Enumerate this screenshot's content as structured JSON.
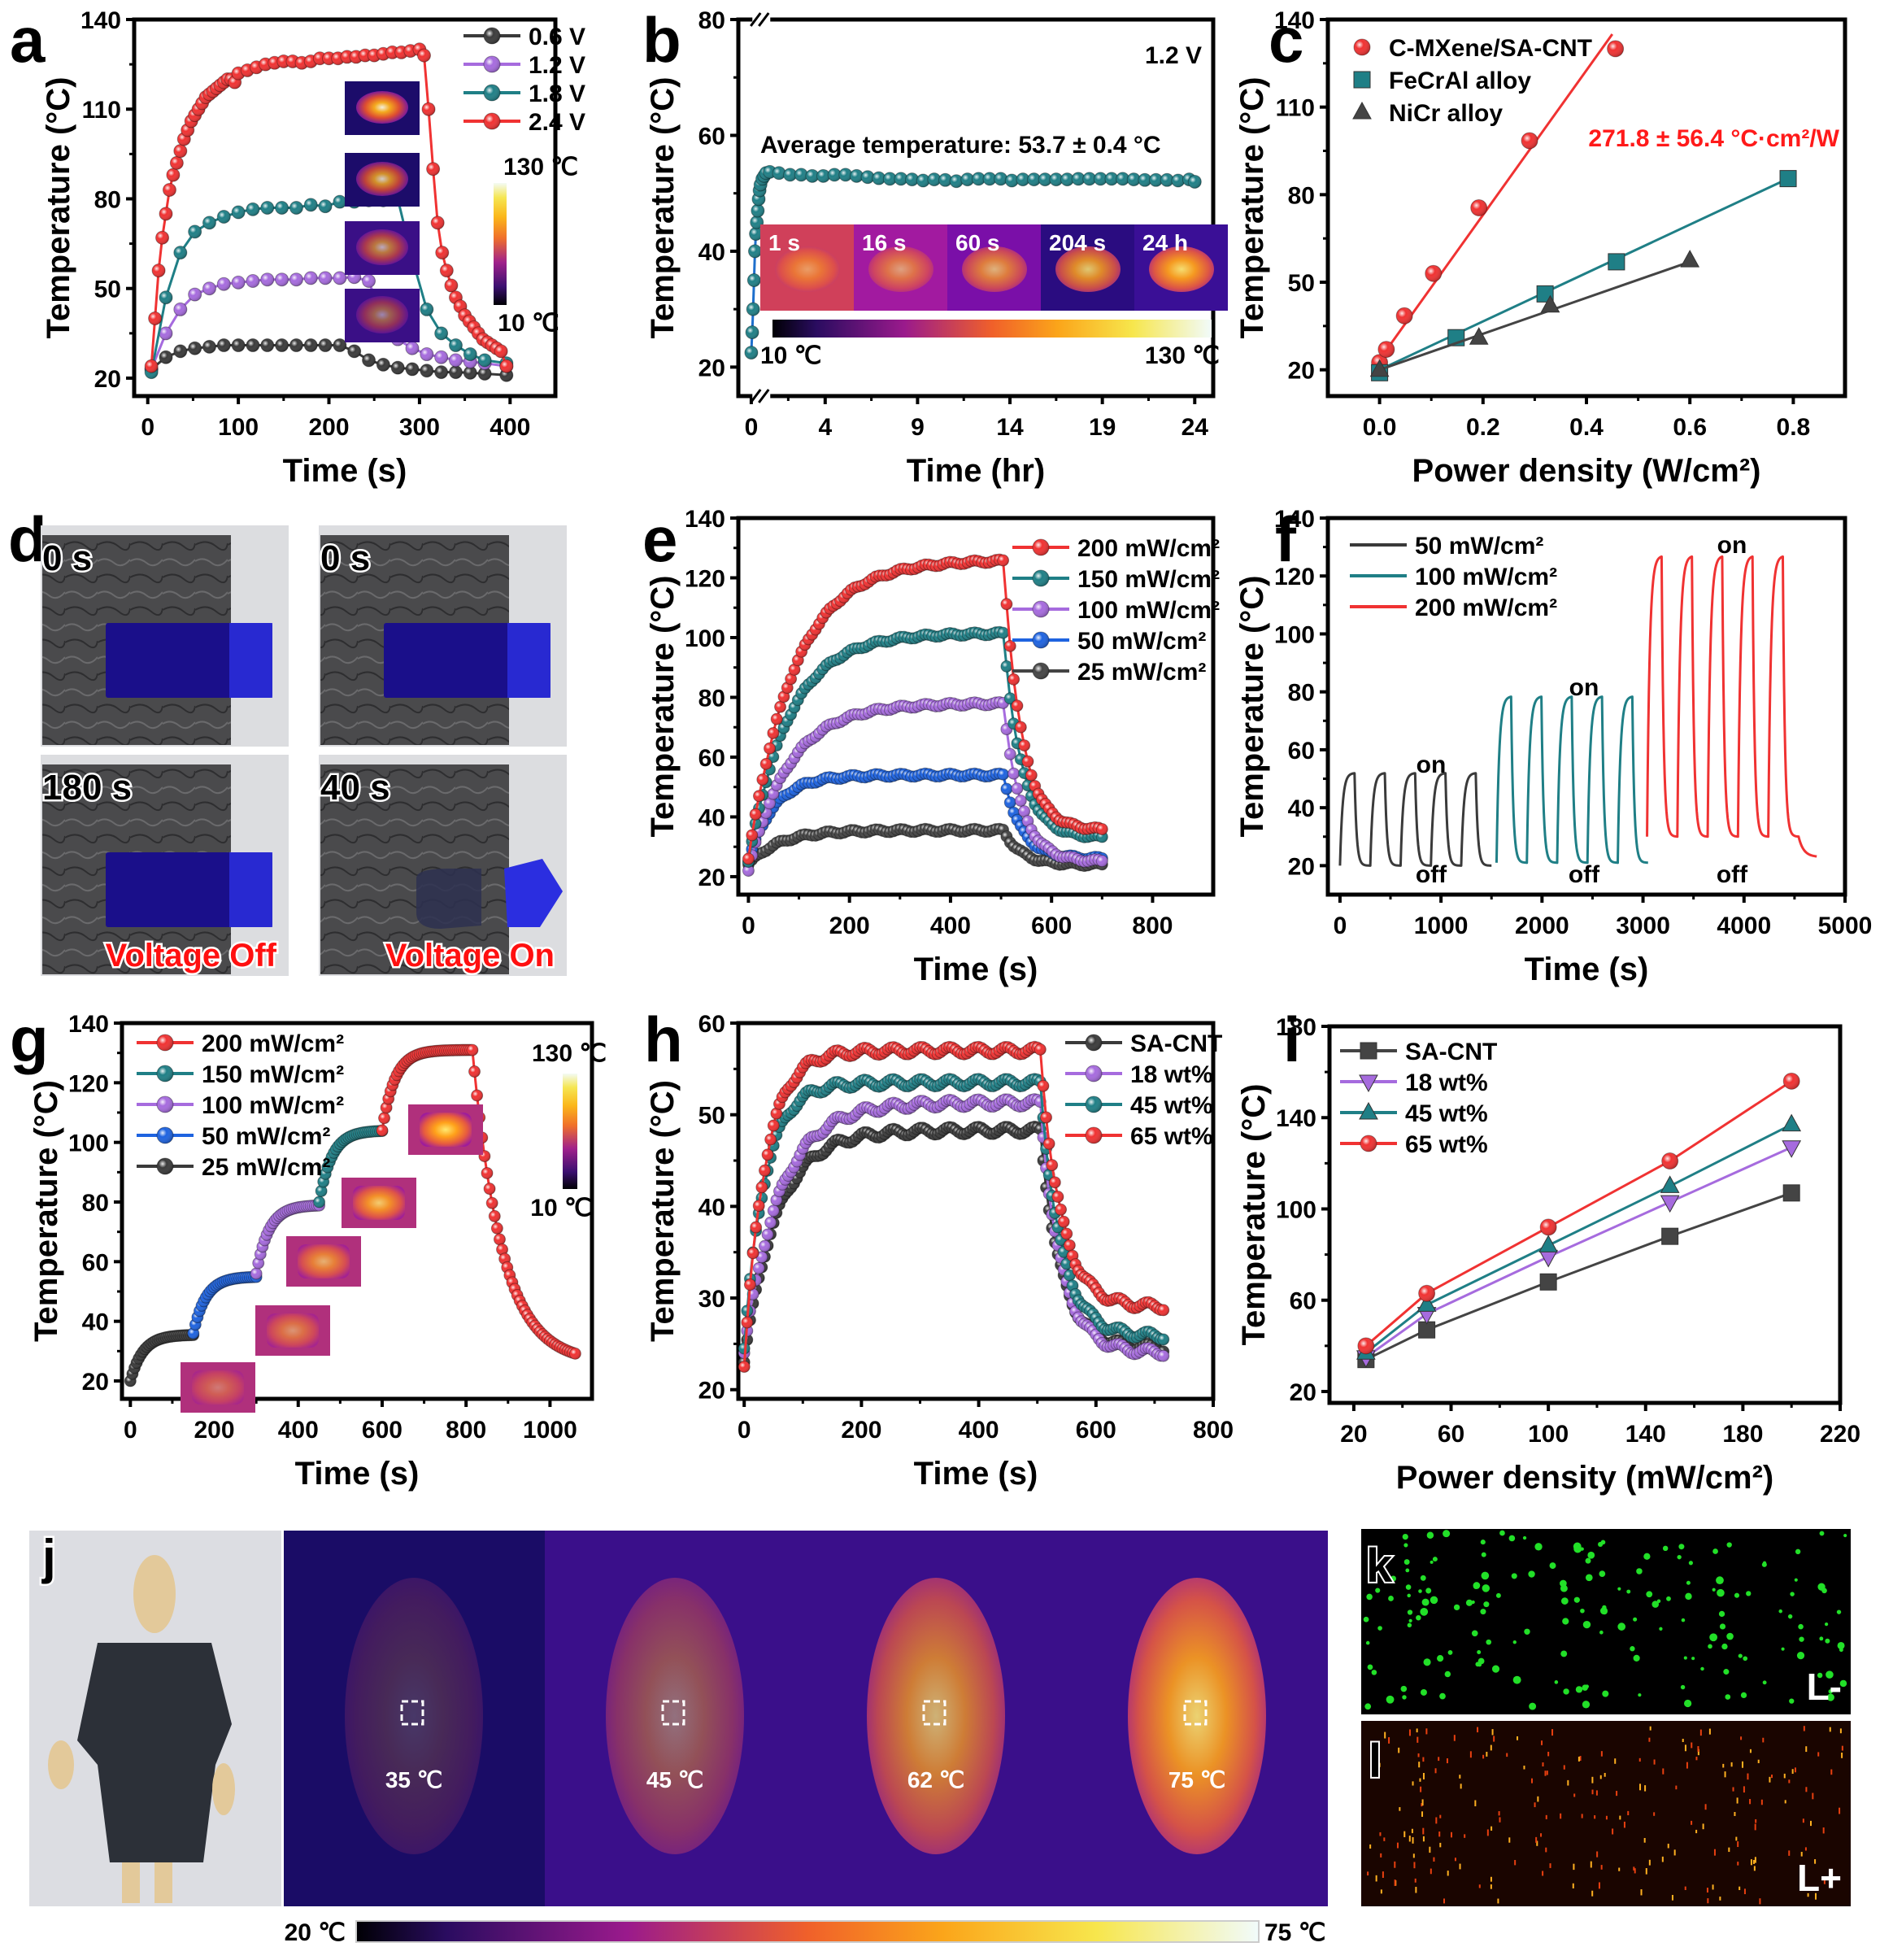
{
  "figure": {
    "panel_labels": [
      "a",
      "b",
      "c",
      "d",
      "e",
      "f",
      "g",
      "h",
      "i",
      "j",
      "k",
      "l"
    ]
  },
  "colors": {
    "black": "#3a3a3a",
    "purple": "#a66bde",
    "teal": "#1f7f86",
    "red": "#f03232",
    "blue": "#1e63e0",
    "darkgray": "#444444"
  },
  "chart_data": [
    {
      "id": "a",
      "type": "line",
      "title": "",
      "xlabel": "Time (s)",
      "ylabel": "Temperature (°C)",
      "xlim": [
        -15,
        450
      ],
      "ylim": [
        14,
        140
      ],
      "xticks": [
        0,
        100,
        200,
        300,
        400
      ],
      "yticks": [
        20,
        50,
        80,
        110,
        140
      ],
      "legend_position": "top-right",
      "series": [
        {
          "name": "0.6 V",
          "color": "#3a3a3a",
          "marker": "circle",
          "x": [
            4,
            20,
            36,
            52,
            68,
            84,
            100,
            116,
            132,
            148,
            164,
            180,
            196,
            212,
            228,
            244,
            260,
            276,
            292,
            308,
            324,
            340,
            356,
            372,
            396
          ],
          "y": [
            23,
            27,
            29,
            30,
            30.5,
            31,
            31,
            31,
            31,
            31,
            31,
            31,
            31,
            31,
            29,
            26,
            24.5,
            23.5,
            23,
            22.5,
            22,
            22,
            21.8,
            21.5,
            21
          ]
        },
        {
          "name": "1.2 V",
          "color": "#a66bde",
          "marker": "circle",
          "x": [
            4,
            20,
            36,
            52,
            68,
            84,
            100,
            116,
            132,
            148,
            164,
            180,
            196,
            212,
            228,
            244,
            260,
            276,
            292,
            308,
            324,
            340,
            356,
            372,
            396
          ],
          "y": [
            23,
            35,
            43,
            48,
            50,
            51.5,
            52,
            52.5,
            53,
            53,
            53,
            53.5,
            53.5,
            53.5,
            53.8,
            52.5,
            39,
            33,
            30,
            28,
            27,
            26,
            25.5,
            25,
            24
          ]
        },
        {
          "name": "1.8 V",
          "color": "#1f7f86",
          "marker": "circle",
          "x": [
            4,
            20,
            36,
            52,
            68,
            84,
            100,
            116,
            132,
            148,
            164,
            180,
            196,
            212,
            228,
            244,
            260,
            276,
            292,
            308,
            324,
            340,
            356,
            372,
            396
          ],
          "y": [
            22,
            47,
            62,
            69,
            72,
            74,
            75.5,
            76.5,
            77,
            77,
            77,
            78,
            77.5,
            79,
            79,
            79.5,
            79.5,
            80,
            60,
            43,
            35,
            31,
            28,
            26,
            25
          ]
        },
        {
          "name": "2.4 V",
          "color": "#f03232",
          "marker": "circle",
          "x": [
            4,
            8,
            12,
            16,
            20,
            24,
            28,
            32,
            36,
            40,
            44,
            48,
            52,
            56,
            60,
            64,
            68,
            72,
            76,
            80,
            84,
            88,
            92,
            96,
            100,
            110,
            120,
            130,
            140,
            150,
            160,
            170,
            180,
            190,
            200,
            210,
            220,
            230,
            240,
            250,
            260,
            270,
            280,
            290,
            300,
            305,
            310,
            315,
            320,
            325,
            330,
            335,
            340,
            345,
            350,
            355,
            360,
            365,
            370,
            375,
            380,
            385,
            390,
            396
          ],
          "y": [
            24,
            40,
            56,
            67,
            75,
            83,
            88,
            92,
            96,
            100,
            103,
            106,
            108,
            110,
            112,
            114,
            115,
            116,
            117,
            118,
            119,
            120,
            120,
            119,
            122,
            123,
            124,
            125,
            125.5,
            126,
            126,
            125.5,
            126,
            127,
            127,
            127,
            127.5,
            127.5,
            128,
            128,
            128.5,
            129,
            129,
            129.5,
            130,
            128,
            110,
            90,
            72,
            62,
            56,
            51,
            47,
            44,
            41,
            39,
            37,
            35,
            33,
            32,
            31,
            30,
            29,
            24
          ]
        }
      ]
    },
    {
      "id": "b",
      "type": "line",
      "xlabel": "Time (hr)",
      "ylabel": "Temperature (°C)",
      "xlim": [
        -0.7,
        25
      ],
      "ylim": [
        15,
        80
      ],
      "xticks": [
        0,
        4,
        9,
        14,
        19,
        24
      ],
      "yticks": [
        20,
        40,
        60,
        80
      ],
      "axis_break": true,
      "annotation_top_right": "1.2 V",
      "annotation_average": "Average temperature: 53.7 ± 0.4 °C",
      "series": [
        {
          "name": "1.2 V",
          "color": "#1f7f86",
          "marker": "circle",
          "x": [
            0,
            0.05,
            0.1,
            0.15,
            0.2,
            0.25,
            0.3,
            0.35,
            0.4,
            0.45,
            0.5,
            0.6,
            0.7,
            0.8,
            1.0,
            1.5,
            2.1,
            2.7,
            3.3,
            3.9,
            4.5,
            5.1,
            5.7,
            6.3,
            6.9,
            7.5,
            8.1,
            8.7,
            9.3,
            9.9,
            10.5,
            11.1,
            11.7,
            12.3,
            12.9,
            13.5,
            14.1,
            14.7,
            15.3,
            15.9,
            16.5,
            17.1,
            17.7,
            18.3,
            18.9,
            19.5,
            20.1,
            20.7,
            21.3,
            21.9,
            22.5,
            23.1,
            23.7,
            24
          ],
          "y": [
            22.5,
            26,
            30,
            35,
            40,
            43,
            45,
            47,
            49,
            50.5,
            51.5,
            52.5,
            53,
            53.5,
            53.7,
            53.5,
            53.2,
            53.2,
            53,
            53,
            53.2,
            53.2,
            53,
            52.8,
            52.6,
            52.5,
            52.5,
            52.4,
            52.2,
            52.4,
            52.3,
            52.1,
            52.4,
            52.5,
            52.5,
            52.5,
            52.2,
            52.4,
            52.4,
            52.4,
            52.4,
            52.4,
            52.5,
            52.5,
            52.5,
            52.5,
            52.5,
            52.4,
            52.3,
            52.3,
            52.3,
            52.2,
            52.4,
            52
          ]
        }
      ],
      "thermal_insets": [
        "1 s",
        "16 s",
        "60 s",
        "204 s",
        "24 h"
      ],
      "colorbar": {
        "min_label": "10 ℃",
        "max_label": "130 ℃"
      }
    },
    {
      "id": "c",
      "type": "scatter",
      "xlabel": "Power density (W/cm²)",
      "ylabel": "Temperature (°C)",
      "xlim": [
        -0.1,
        0.9
      ],
      "ylim": [
        11,
        140
      ],
      "xticks": [
        0.0,
        0.2,
        0.4,
        0.6,
        0.8
      ],
      "yticks": [
        20,
        50,
        80,
        110,
        140
      ],
      "legend_position": "top-left",
      "fit_annotation": "271.8 ± 56.4 °C·cm²/W",
      "series": [
        {
          "name": "C-MXene/SA-CNT",
          "color": "#f03232",
          "marker": "circle",
          "x": [
            0.0,
            0.013,
            0.048,
            0.104,
            0.192,
            0.29,
            0.456
          ],
          "y": [
            22.5,
            27,
            38.5,
            53,
            75.5,
            98.5,
            130
          ],
          "fit": [
            [
              0.0,
              23.5
            ],
            [
              0.45,
              135
            ]
          ]
        },
        {
          "name": "FeCrAl alloy",
          "color": "#1f7f86",
          "marker": "square",
          "x": [
            0.0,
            0.148,
            0.32,
            0.458,
            0.79
          ],
          "y": [
            19,
            31,
            46,
            57,
            85.5
          ],
          "fit": [
            [
              0.0,
              20
            ],
            [
              0.79,
              85.5
            ]
          ]
        },
        {
          "name": "NiCr alloy",
          "color": "#444444",
          "marker": "triangle",
          "x": [
            0.0,
            0.192,
            0.33,
            0.6
          ],
          "y": [
            20,
            31,
            42,
            57.5
          ],
          "fit": [
            [
              0.0,
              20
            ],
            [
              0.6,
              57
            ]
          ]
        }
      ]
    },
    {
      "id": "e",
      "type": "line",
      "xlabel": "Time (s)",
      "ylabel": "Temperature (°C)",
      "xlim": [
        -20,
        920
      ],
      "ylim": [
        14,
        140
      ],
      "xticks": [
        0,
        200,
        400,
        600,
        800
      ],
      "yticks": [
        20,
        40,
        60,
        80,
        100,
        120,
        140
      ],
      "legend_position": "top-right",
      "series": [
        {
          "name": "200 mW/cm²",
          "color": "#f03232",
          "plateau": 126,
          "start": 26,
          "end": 35.5,
          "rise_tau": 90
        },
        {
          "name": "150 mW/cm²",
          "color": "#1f7f86",
          "plateau": 101.5,
          "start": 25,
          "end": 33,
          "rise_tau": 80
        },
        {
          "name": "100 mW/cm²",
          "color": "#a66bde",
          "plateau": 78,
          "start": 22,
          "end": 25,
          "rise_tau": 80
        },
        {
          "name": "50 mW/cm²",
          "color": "#1e63e0",
          "plateau": 54,
          "start": 25,
          "end": 26,
          "rise_tau": 50
        },
        {
          "name": "25 mW/cm²",
          "color": "#444444",
          "plateau": 35.5,
          "start": 24,
          "end": 24,
          "rise_tau": 60
        }
      ],
      "on_until_s": 505,
      "end_s": 700
    },
    {
      "id": "f",
      "type": "line",
      "xlabel": "Time (s)",
      "ylabel": "Temperature (°C)",
      "xlim": [
        -120,
        5000
      ],
      "ylim": [
        10,
        140
      ],
      "xticks": [
        0,
        1000,
        2000,
        3000,
        4000,
        5000
      ],
      "yticks": [
        20,
        40,
        60,
        80,
        100,
        120,
        140
      ],
      "legend_position": "top-left",
      "annotations": [
        "on",
        "off",
        "on",
        "off",
        "on",
        "off"
      ],
      "series": [
        {
          "name": "50 mW/cm²",
          "color": "#3a3a3a",
          "t0": 0,
          "period": 300,
          "cycles": 5,
          "peak": 52,
          "base": 20
        },
        {
          "name": "100 mW/cm²",
          "color": "#1f7f86",
          "t0": 1550,
          "period": 300,
          "cycles": 5,
          "peak": 78.5,
          "base": 21
        },
        {
          "name": "200 mW/cm²",
          "color": "#f03232",
          "t0": 3040,
          "period": 300,
          "cycles": 5,
          "peak": 127,
          "base": 30,
          "final": 23
        }
      ]
    },
    {
      "id": "g",
      "type": "line",
      "xlabel": "Time (s)",
      "ylabel": "Temperature (°C)",
      "xlim": [
        -20,
        1100
      ],
      "ylim": [
        14,
        140
      ],
      "xticks": [
        0,
        200,
        400,
        600,
        800,
        1000
      ],
      "yticks": [
        20,
        40,
        60,
        80,
        100,
        120,
        140
      ],
      "legend_position": "top-left",
      "colorbar": {
        "min_label": "10 ℃",
        "max_label": "130 ℃"
      },
      "series": [
        {
          "name": "200 mW/cm²",
          "color": "#f03232",
          "segment": [
            600,
            815
          ],
          "from": 104,
          "to": 131,
          "cool_to": 26,
          "cool_end": 1060
        },
        {
          "name": "150 mW/cm²",
          "color": "#1f7f86",
          "segment": [
            450,
            600
          ],
          "from": 80,
          "to": 104
        },
        {
          "name": "100 mW/cm²",
          "color": "#a66bde",
          "segment": [
            300,
            450
          ],
          "from": 56,
          "to": 79
        },
        {
          "name": "50 mW/cm²",
          "color": "#1e63e0",
          "segment": [
            150,
            300
          ],
          "from": 36,
          "to": 55
        },
        {
          "name": "25 mW/cm²",
          "color": "#3a3a3a",
          "segment": [
            0,
            150
          ],
          "from": 20,
          "to": 35.5
        }
      ]
    },
    {
      "id": "h",
      "type": "line",
      "xlabel": "Time (s)",
      "ylabel": "Temperature (°C)",
      "xlim": [
        -10,
        800
      ],
      "ylim": [
        19,
        60
      ],
      "xticks": [
        0,
        200,
        400,
        600,
        800
      ],
      "yticks": [
        20,
        30,
        40,
        50,
        60
      ],
      "legend_position": "top-right",
      "series": [
        {
          "name": "SA-CNT",
          "color": "#3a3a3a",
          "plateau": 48.3,
          "start": 23,
          "end": 24.5,
          "rise_tau": 55
        },
        {
          "name": "18 wt%",
          "color": "#a66bde",
          "plateau": 51.3,
          "start": 24,
          "end": 24,
          "rise_tau": 60
        },
        {
          "name": "45 wt%",
          "color": "#1f7f86",
          "plateau": 53.5,
          "start": 24.5,
          "end": 25.8,
          "rise_tau": 35
        },
        {
          "name": "65 wt%",
          "color": "#f03232",
          "plateau": 57,
          "start": 22.5,
          "end": 29,
          "rise_tau": 35
        }
      ],
      "on_until_s": 505,
      "end_s": 715
    },
    {
      "id": "i",
      "type": "line",
      "xlabel": "Power density (mW/cm²)",
      "ylabel": "Temperature (°C)",
      "xlim": [
        10,
        220
      ],
      "ylim": [
        15,
        180
      ],
      "xticks": [
        20,
        60,
        100,
        140,
        180,
        220
      ],
      "yticks": [
        20,
        60,
        100,
        140,
        180
      ],
      "legend_position": "top-left",
      "x": [
        25,
        50,
        100,
        150,
        200
      ],
      "series": [
        {
          "name": "SA-CNT",
          "color": "#444444",
          "marker": "square",
          "values": [
            34,
            47,
            68,
            88,
            107
          ]
        },
        {
          "name": "18 wt%",
          "color": "#a66bde",
          "marker": "triangle-down",
          "values": [
            35,
            54,
            79,
            103,
            127
          ]
        },
        {
          "name": "45 wt%",
          "color": "#1f7f86",
          "marker": "triangle",
          "values": [
            37,
            58,
            84,
            110,
            137
          ]
        },
        {
          "name": "65 wt%",
          "color": "#f03232",
          "marker": "circle",
          "values": [
            40,
            63,
            92,
            121,
            156
          ]
        }
      ]
    }
  ],
  "panel_d": {
    "photos": [
      {
        "time_label": "0 s"
      },
      {
        "time_label": "0 s"
      },
      {
        "time_label": "180 s",
        "caption": "Voltage Off"
      },
      {
        "time_label": "40 s",
        "caption": "Voltage On"
      }
    ]
  },
  "panel_j": {
    "thermal_readings": [
      "35 ℃",
      "45 ℃",
      "62 ℃",
      "75 ℃"
    ],
    "heat_levels": [
      0.2,
      0.45,
      0.75,
      0.9
    ],
    "colorbar": {
      "min_label": "20 ℃",
      "max_label": "75 ℃"
    }
  },
  "panel_k": {
    "corner_label": "L-"
  },
  "panel_l": {
    "corner_label": "L+"
  }
}
